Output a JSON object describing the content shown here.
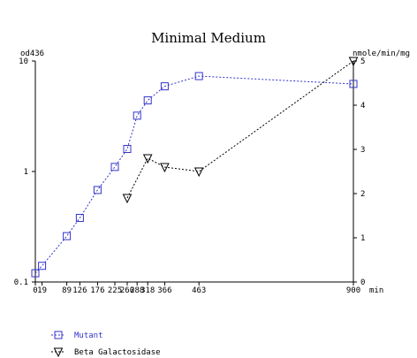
{
  "chart_data": {
    "type": "line",
    "title": "Minimal Medium",
    "y_left_label": "od436",
    "y_right_label": "nmole/min/mg",
    "x_unit_label": "min",
    "x_ticks": [
      0,
      19,
      89,
      126,
      176,
      225,
      260,
      288,
      318,
      366,
      463,
      900
    ],
    "x_tick_labels": [
      "0",
      "19",
      "89",
      "126",
      "176",
      "225",
      "260",
      "288",
      "318",
      "366",
      "463",
      "900"
    ],
    "xlim": [
      0,
      900
    ],
    "y_left": {
      "scale": "log",
      "ylim": [
        0.1,
        10
      ],
      "ticks": [
        0.1,
        1,
        10
      ],
      "tick_labels": [
        "0.1",
        "1",
        "10"
      ]
    },
    "y_right": {
      "scale": "linear",
      "ylim": [
        0,
        5
      ],
      "ticks": [
        0,
        1,
        2,
        3,
        4,
        5
      ],
      "tick_labels": [
        "0",
        "1",
        "2",
        "3",
        "4",
        "5"
      ]
    },
    "series": [
      {
        "name": "Mutant",
        "axis": "left",
        "marker": "square",
        "color": "#3333cc",
        "x": [
          0,
          19,
          89,
          126,
          176,
          225,
          260,
          288,
          318,
          366,
          463,
          900
        ],
        "y": [
          0.12,
          0.14,
          0.26,
          0.38,
          0.68,
          1.1,
          1.6,
          3.2,
          4.4,
          5.9,
          7.3,
          6.2
        ]
      },
      {
        "name": "Beta Galactosidase",
        "axis": "right",
        "marker": "triangle-down",
        "color": "#000000",
        "x": [
          260,
          318,
          366,
          463,
          900
        ],
        "y": [
          1.9,
          2.8,
          2.6,
          2.5,
          5.0
        ]
      }
    ]
  }
}
